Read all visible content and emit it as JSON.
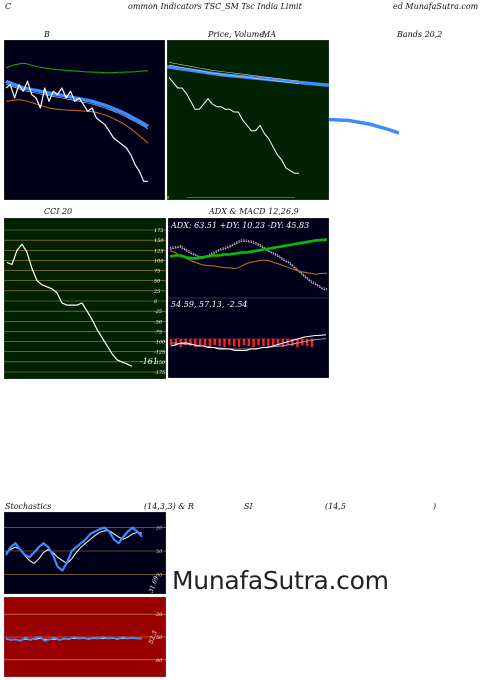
{
  "header": {
    "left": "C",
    "title": "ommon  Indicators TSC_SM Tsc India  Limit",
    "right": "ed MunafaSutra.com"
  },
  "panels": {
    "bollinger": {
      "label": "B"
    },
    "price": {
      "label_a": "Price,  Volume,",
      "label_b": "Volume",
      "label_c": "MA"
    },
    "bands": {
      "label": "Bands 20,2"
    },
    "cci": {
      "label": "CCI 20",
      "value_label": "-161"
    },
    "adx": {
      "label": "ADX  & MACD 12,26,9",
      "stats": "ADX: 63.51  +DY: 10.23 -DY: 45.83"
    },
    "macd": {
      "stats": "54.59,  57.13,  -2.54"
    },
    "stochastics": {
      "label_a": "Stochastics",
      "label_b": "(14,3,3) & R",
      "label_c": "SI",
      "label_d": "(14,5",
      "label_e": ")",
      "value_label": "31.69"
    },
    "rsi": {
      "value_label": "52.3"
    }
  },
  "watermark": "MunafaSutra.com",
  "colors": {
    "dark_bg": "#00001a",
    "price_bg": "#002200",
    "cci_bg": "#002200",
    "rsi_bg": "#990000",
    "blue": "#3c8cff",
    "green": "#00c000",
    "orange": "#d0701c",
    "white": "#ffffff",
    "grid_gold": "#b08a2a"
  },
  "chart_data": [
    {
      "type": "line",
      "name": "bollinger-bands",
      "series": [
        {
          "color": "#ffffff",
          "values": [
            98,
            99,
            95,
            99,
            97,
            100,
            96,
            95,
            92,
            98,
            94,
            97,
            96,
            98,
            95,
            97,
            94,
            95,
            93,
            91,
            92,
            89,
            88,
            87,
            85,
            83,
            82,
            81,
            80,
            78,
            75,
            73,
            70,
            70
          ]
        },
        {
          "color": "#3c8cff",
          "values": [
            100,
            99.5,
            99,
            98.5,
            98,
            97.8,
            97.5,
            97.3,
            97,
            96.8,
            96.5,
            96.3,
            96,
            95.8,
            95.5,
            95.3,
            95,
            94.8,
            94.5,
            94.3,
            94,
            93.6,
            93.2,
            92.8,
            92.3,
            91.8,
            91.3,
            90.7,
            90.1,
            89.4,
            88.7,
            88,
            87.3,
            86.5
          ]
        },
        {
          "color": "#00c000",
          "values": [
            104,
            104.5,
            105,
            105.2,
            105.4,
            105.2,
            104.8,
            104.5,
            104.2,
            104,
            103.8,
            103.7,
            103.5,
            103.4,
            103.3,
            103.2,
            103.1,
            103,
            102.9,
            102.8,
            102.8,
            102.7,
            102.7,
            102.6,
            102.6,
            102.6,
            102.7,
            102.7,
            102.8,
            102.8,
            102.9,
            103,
            103.1,
            103.2
          ]
        },
        {
          "color": "#d0701c",
          "values": [
            94,
            94.2,
            94.4,
            94.5,
            94.3,
            94,
            93.6,
            93.2,
            92.8,
            92.4,
            92,
            91.8,
            91.6,
            91.5,
            91.4,
            91.3,
            91.3,
            91.2,
            91.1,
            91,
            90.9,
            90.7,
            90.3,
            89.9,
            89.4,
            88.8,
            88.2,
            87.5,
            86.7,
            85.8,
            84.8,
            83.7,
            82.6,
            81.4
          ]
        }
      ]
    },
    {
      "type": "line",
      "name": "price-volume-ma",
      "series": [
        {
          "color": "#ffffff",
          "values": [
            96,
            94,
            92,
            92,
            90,
            87,
            84,
            84,
            86,
            88,
            86,
            85,
            85,
            84,
            84,
            83,
            83,
            80,
            78,
            76,
            76,
            78,
            75,
            73,
            70,
            67,
            65,
            62,
            61,
            60,
            60
          ]
        },
        {
          "color": "#3c8cff",
          "values": [
            100,
            99.7,
            99.4,
            99.1,
            98.8,
            98.5,
            98.2,
            97.9,
            97.6,
            97.3,
            97,
            96.8,
            96.6,
            96.4,
            96.2,
            96,
            95.8,
            95.6,
            95.4,
            95.2,
            95,
            94.8,
            94.6,
            94.4,
            94.2,
            94,
            93.8,
            93.6,
            93.4,
            93.2,
            93
          ]
        }
      ]
    },
    {
      "type": "line",
      "name": "cci",
      "ylim": [
        -175,
        175
      ],
      "yticks": [
        175,
        150,
        125,
        100,
        75,
        50,
        25,
        0,
        -25,
        -50,
        -75,
        -100,
        -125,
        -150,
        -175
      ],
      "series": [
        {
          "color": "#ffffff",
          "values": [
            95,
            90,
            125,
            140,
            120,
            80,
            50,
            40,
            35,
            30,
            20,
            -5,
            -10,
            -10,
            -10,
            -5,
            -25,
            -45,
            -70,
            -90,
            -110,
            -130,
            -145,
            -150,
            -155,
            -161
          ]
        }
      ]
    },
    {
      "type": "line",
      "name": "adx",
      "series": [
        {
          "name": "ADX",
          "color": "#bbbbbb",
          "values": [
            20,
            19,
            18,
            22,
            25,
            28,
            30,
            28,
            25,
            22,
            20,
            18,
            15,
            12,
            12,
            13,
            15,
            18,
            22,
            25,
            28,
            32,
            35,
            40,
            45,
            50,
            55,
            58,
            62,
            63.51
          ]
        },
        {
          "name": "+DY",
          "color": "#00c000",
          "values": [
            28,
            27,
            27,
            29,
            30,
            30,
            29,
            28,
            27,
            27,
            26,
            26,
            25,
            24,
            24,
            23,
            22,
            21,
            20,
            19,
            18,
            17,
            16,
            15,
            14,
            13,
            12,
            11,
            10.5,
            10.23
          ]
        },
        {
          "name": "-DY",
          "color": "#d0701c",
          "values": [
            22,
            24,
            28,
            30,
            33,
            35,
            37,
            38,
            38,
            39,
            40,
            40,
            41,
            39,
            36,
            34,
            33,
            32,
            32,
            34,
            36,
            38,
            40,
            42,
            44,
            45,
            46,
            47,
            46,
            45.83
          ]
        }
      ]
    },
    {
      "type": "line",
      "name": "macd",
      "series": [
        {
          "name": "MACD",
          "color": "#ffffff",
          "values": [
            62,
            61,
            60,
            60,
            61,
            62,
            62,
            63,
            63,
            64,
            64,
            64,
            65,
            65,
            65,
            64,
            64,
            63,
            63,
            62,
            61,
            60,
            59,
            58,
            57,
            56,
            55.5,
            55,
            54.8,
            54.59
          ]
        },
        {
          "name": "Signal",
          "color": "#bbbbbb",
          "values": [
            60,
            60,
            60.5,
            60.8,
            61,
            61.5,
            62,
            62.5,
            63,
            63.3,
            63.6,
            63.8,
            64,
            64,
            64,
            63.8,
            63.6,
            63.3,
            63,
            62.6,
            62.2,
            61.8,
            61.2,
            60.5,
            59.8,
            59,
            58.4,
            57.8,
            57.4,
            57.13
          ]
        }
      ]
    },
    {
      "type": "line",
      "name": "stochastics",
      "ylim": [
        0,
        100
      ],
      "yticks": [
        80,
        50,
        20
      ],
      "series": [
        {
          "name": "%K",
          "color": "#3c8cff",
          "values": [
            55,
            45,
            40,
            48,
            55,
            58,
            52,
            45,
            40,
            45,
            55,
            70,
            75,
            65,
            50,
            45,
            40,
            35,
            28,
            25,
            22,
            20,
            25,
            35,
            40,
            32,
            25,
            20,
            25,
            31.69
          ]
        },
        {
          "name": "%D",
          "color": "#ffffff",
          "values": [
            52,
            48,
            45,
            48,
            56,
            62,
            66,
            60,
            52,
            48,
            52,
            58,
            62,
            66,
            60,
            52,
            45,
            40,
            35,
            30,
            26,
            24,
            24,
            28,
            32,
            35,
            32,
            28,
            26,
            27
          ]
        }
      ]
    },
    {
      "type": "line",
      "name": "rsi",
      "ylim": [
        0,
        100
      ],
      "yticks": [
        80,
        50,
        20
      ],
      "series": [
        {
          "name": "RSI",
          "color": "#3c8cff",
          "values": [
            52,
            54,
            53,
            55,
            51,
            54,
            52,
            50,
            55,
            53,
            51,
            54,
            52,
            53,
            50,
            52,
            51,
            53,
            51,
            52,
            50,
            52,
            51,
            53,
            50,
            52,
            51,
            52,
            52.3
          ]
        },
        {
          "name": "RSI-MA",
          "color": "#ffffff",
          "values": [
            53,
            53,
            54,
            54,
            53,
            53,
            53,
            52,
            53,
            53,
            53,
            53,
            53,
            52,
            52,
            52,
            52,
            52,
            52,
            52,
            52,
            52,
            52,
            52,
            52,
            52,
            52,
            52,
            52.1
          ]
        }
      ]
    }
  ]
}
